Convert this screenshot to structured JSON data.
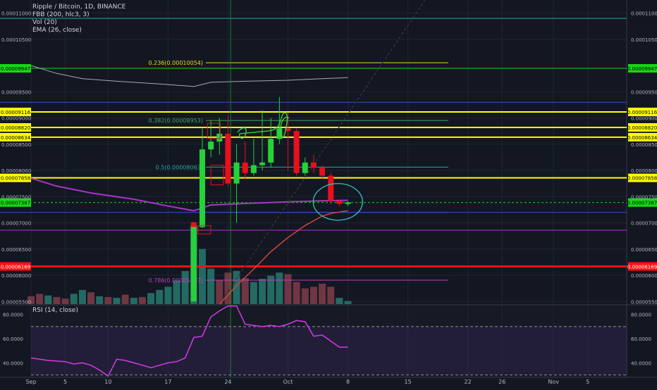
{
  "header": {
    "title": "Ripple / Bitcoin, 1D, BINANCE",
    "indicators": [
      "FBB (200, hlc3, 3)",
      "Vol (20)",
      "EMA (26, close)"
    ]
  },
  "rsi_header": "RSI (14, close)",
  "colors": {
    "background": "#131722",
    "up": "#26d13a",
    "down": "#e8101a",
    "volume_up": "#26736a",
    "volume_down": "#7a3a48",
    "fib": "#dede2a",
    "fib_green": "#3ea85a",
    "fib_teal": "#2aa5a5",
    "fib_purple": "#c03ec0",
    "ema": "#d0473a",
    "fbb_mid": "#a835c9",
    "fbb_upper": "#a7a9ad",
    "rsi": "#d43ae6",
    "tag_yellow": "#ffff00",
    "tag_green": "#16d916",
    "tag_red": "#ff1111"
  },
  "chart_data": [
    {
      "type": "candlestick",
      "title": "Ripple / Bitcoin, 1D, BINANCE",
      "ylim": [
        5.45e-05,
        0.0001125
      ],
      "x_ticks": [
        {
          "label": "Sep",
          "day": 0
        },
        {
          "label": "5",
          "day": 4
        },
        {
          "label": "10",
          "day": 9
        },
        {
          "label": "17",
          "day": 16
        },
        {
          "label": "24",
          "day": 23
        },
        {
          "label": "Oct",
          "day": 30
        },
        {
          "label": "8",
          "day": 37
        },
        {
          "label": "15",
          "day": 44
        },
        {
          "label": "22",
          "day": 51
        },
        {
          "label": "26",
          "day": 55
        },
        {
          "label": "Nov",
          "day": 61
        },
        {
          "label": "5",
          "day": 65
        }
      ],
      "y_ticks": [
        "0.00011000",
        "0.00010500",
        "0.00009500",
        "0.00009000",
        "0.00008500",
        "0.00008000",
        "0.00007500",
        "0.00007000",
        "0.00006500",
        "0.00006000",
        "0.00005500"
      ],
      "y_tick_values": [
        0.00011,
        0.000105,
        9.5e-05,
        9e-05,
        8.5e-05,
        8e-05,
        7.5e-05,
        7e-05,
        6.5e-05,
        6e-05,
        5.5e-05
      ],
      "candles": [
        {
          "day": 19,
          "o": 7.01e-05,
          "h": 7.02e-05,
          "l": 5.5e-05,
          "c": 5.5e-05
        },
        {
          "day": 19,
          "o": 5.5e-05,
          "h": 6.93e-05,
          "l": 5.5e-05,
          "c": 6.92e-05
        },
        {
          "day": 20,
          "o": 6.92e-05,
          "h": 8.8e-05,
          "l": 6.9e-05,
          "c": 8.4e-05
        },
        {
          "day": 21,
          "o": 8.4e-05,
          "h": 8.95e-05,
          "l": 8.25e-05,
          "c": 8.55e-05
        },
        {
          "day": 22,
          "o": 8.55e-05,
          "h": 9e-05,
          "l": 8.3e-05,
          "c": 8.7e-05
        },
        {
          "day": 23,
          "o": 8.7e-05,
          "h": 9.05e-05,
          "l": 7.7e-05,
          "c": 7.75e-05
        },
        {
          "day": 24,
          "o": 7.75e-05,
          "h": 8.5e-05,
          "l": 7e-05,
          "c": 8.15e-05
        },
        {
          "day": 25,
          "o": 8.15e-05,
          "h": 8.55e-05,
          "l": 7.85e-05,
          "c": 7.95e-05
        },
        {
          "day": 26,
          "o": 7.95e-05,
          "h": 8.6e-05,
          "l": 7.9e-05,
          "c": 8.1e-05
        },
        {
          "day": 27,
          "o": 8.1e-05,
          "h": 9.15e-05,
          "l": 8e-05,
          "c": 8.15e-05
        },
        {
          "day": 28,
          "o": 8.15e-05,
          "h": 9e-05,
          "l": 8.05e-05,
          "c": 8.6e-05
        },
        {
          "day": 29,
          "o": 8.6e-05,
          "h": 9.4e-05,
          "l": 8.5e-05,
          "c": 8.8e-05
        },
        {
          "day": 30,
          "o": 8.8e-05,
          "h": 9.1e-05,
          "l": 8e-05,
          "c": 8.75e-05
        },
        {
          "day": 31,
          "o": 8.75e-05,
          "h": 8.8e-05,
          "l": 7.9e-05,
          "c": 7.95e-05
        },
        {
          "day": 32,
          "o": 7.95e-05,
          "h": 8.25e-05,
          "l": 7.9e-05,
          "c": 8.15e-05
        },
        {
          "day": 33,
          "o": 8.15e-05,
          "h": 8.3e-05,
          "l": 7.95e-05,
          "c": 8.05e-05
        },
        {
          "day": 34,
          "o": 8.05e-05,
          "h": 8.1e-05,
          "l": 7.85e-05,
          "c": 7.9e-05
        },
        {
          "day": 35,
          "o": 7.9e-05,
          "h": 7.95e-05,
          "l": 7.35e-05,
          "c": 7.42e-05
        },
        {
          "day": 36,
          "o": 7.42e-05,
          "h": 7.45e-05,
          "l": 7.32e-05,
          "c": 7.36e-05
        },
        {
          "day": 37,
          "o": 7.36e-05,
          "h": 7.41e-05,
          "l": 7.32e-05,
          "c": 7.39e-05
        }
      ],
      "horizontal_levels": [
        {
          "value": 0.000109,
          "color": "#2aa5a5",
          "style": "solid",
          "tag": ""
        },
        {
          "value": 9.947e-05,
          "color": "#16d916",
          "style": "solid",
          "tag": "0.00009947"
        },
        {
          "value": 9.3e-05,
          "color": "#3450c8",
          "style": "solid",
          "tag": ""
        },
        {
          "value": 9.116e-05,
          "color": "#ffff00",
          "style": "solid",
          "tag": "0.00009116"
        },
        {
          "value": 8.82e-05,
          "color": "#ffff00",
          "style": "solid",
          "tag": "0.00008820"
        },
        {
          "value": 8.634e-05,
          "color": "#ffff00",
          "style": "solid",
          "tag": "0.00008634"
        },
        {
          "value": 7.858e-05,
          "color": "#ffff00",
          "style": "solid",
          "tag": "0.00007858"
        },
        {
          "value": 7.387e-05,
          "color": "#16d916",
          "style": "dashed",
          "tag": "0.00007387"
        },
        {
          "value": 7.2e-05,
          "color": "#3450c8",
          "style": "solid",
          "tag": ""
        },
        {
          "value": 6.86e-05,
          "color": "#a835c9",
          "style": "solid",
          "tag": ""
        },
        {
          "value": 6.169e-05,
          "color": "#ff1111",
          "style": "thick",
          "tag": "0.00006169"
        }
      ],
      "fib_levels": [
        {
          "label": "0.236(0.00010054)",
          "value": 0.00010054,
          "color": "#dede2a"
        },
        {
          "label": "0.382(0.00008953)",
          "value": 8.953e-05,
          "color": "#3ea85a"
        },
        {
          "label": "0.5(0.00008063)",
          "value": 8.063e-05,
          "color": "#2aa5a5"
        },
        {
          "label": "0.786(0.00005907)",
          "value": 5.907e-05,
          "color": "#c03ec0"
        }
      ],
      "fbb_upper": [
        {
          "day": 0,
          "v": 0.0001
        },
        {
          "day": 3,
          "v": 9.85e-05
        },
        {
          "day": 6,
          "v": 9.75e-05
        },
        {
          "day": 10,
          "v": 9.7e-05
        },
        {
          "day": 15,
          "v": 9.65e-05
        },
        {
          "day": 19,
          "v": 9.6e-05
        },
        {
          "day": 21,
          "v": 9.68e-05
        },
        {
          "day": 25,
          "v": 9.7e-05
        },
        {
          "day": 30,
          "v": 9.72e-05
        },
        {
          "day": 34,
          "v": 9.75e-05
        },
        {
          "day": 37,
          "v": 9.77e-05
        }
      ],
      "fbb_mid": [
        {
          "day": 0,
          "v": 7.85e-05
        },
        {
          "day": 3,
          "v": 7.7e-05
        },
        {
          "day": 7,
          "v": 7.57e-05
        },
        {
          "day": 12,
          "v": 7.45e-05
        },
        {
          "day": 16,
          "v": 7.32e-05
        },
        {
          "day": 19,
          "v": 7.23e-05
        },
        {
          "day": 21,
          "v": 7.34e-05
        },
        {
          "day": 25,
          "v": 7.37e-05
        },
        {
          "day": 30,
          "v": 7.4e-05
        },
        {
          "day": 34,
          "v": 7.42e-05
        },
        {
          "day": 37,
          "v": 7.43e-05
        }
      ],
      "ema": [
        {
          "day": 22,
          "v": 5.45e-05
        },
        {
          "day": 24,
          "v": 5.8e-05
        },
        {
          "day": 26,
          "v": 6.12e-05
        },
        {
          "day": 28,
          "v": 6.45e-05
        },
        {
          "day": 30,
          "v": 6.72e-05
        },
        {
          "day": 32,
          "v": 6.95e-05
        },
        {
          "day": 34,
          "v": 7.13e-05
        },
        {
          "day": 35,
          "v": 7.18e-05
        },
        {
          "day": 37,
          "v": 7.23e-05
        }
      ],
      "volume": [
        {
          "day": 0,
          "v": 0.1,
          "up": false
        },
        {
          "day": 1,
          "v": 0.13,
          "up": false
        },
        {
          "day": 2,
          "v": 0.11,
          "up": true
        },
        {
          "day": 3,
          "v": 0.09,
          "up": false
        },
        {
          "day": 4,
          "v": 0.07,
          "up": false
        },
        {
          "day": 5,
          "v": 0.13,
          "up": true
        },
        {
          "day": 6,
          "v": 0.18,
          "up": true
        },
        {
          "day": 7,
          "v": 0.15,
          "up": false
        },
        {
          "day": 8,
          "v": 0.1,
          "up": true
        },
        {
          "day": 9,
          "v": 0.09,
          "up": false
        },
        {
          "day": 10,
          "v": 0.08,
          "up": true
        },
        {
          "day": 11,
          "v": 0.12,
          "up": false
        },
        {
          "day": 12,
          "v": 0.08,
          "up": true
        },
        {
          "day": 13,
          "v": 0.09,
          "up": false
        },
        {
          "day": 14,
          "v": 0.14,
          "up": true
        },
        {
          "day": 15,
          "v": 0.18,
          "up": true
        },
        {
          "day": 16,
          "v": 0.22,
          "up": true
        },
        {
          "day": 17,
          "v": 0.3,
          "up": true
        },
        {
          "day": 18,
          "v": 0.42,
          "up": true
        },
        {
          "day": 19,
          "v": 1.0,
          "up": true
        },
        {
          "day": 20,
          "v": 0.7,
          "up": true
        },
        {
          "day": 21,
          "v": 0.45,
          "up": true
        },
        {
          "day": 22,
          "v": 0.3,
          "up": false
        },
        {
          "day": 23,
          "v": 0.4,
          "up": false
        },
        {
          "day": 24,
          "v": 0.42,
          "up": true
        },
        {
          "day": 25,
          "v": 0.33,
          "up": false
        },
        {
          "day": 26,
          "v": 0.28,
          "up": true
        },
        {
          "day": 27,
          "v": 0.32,
          "up": true
        },
        {
          "day": 28,
          "v": 0.36,
          "up": true
        },
        {
          "day": 29,
          "v": 0.4,
          "up": true
        },
        {
          "day": 30,
          "v": 0.38,
          "up": false
        },
        {
          "day": 31,
          "v": 0.28,
          "up": false
        },
        {
          "day": 32,
          "v": 0.2,
          "up": false
        },
        {
          "day": 33,
          "v": 0.22,
          "up": false
        },
        {
          "day": 34,
          "v": 0.26,
          "up": false
        },
        {
          "day": 35,
          "v": 0.22,
          "up": false
        },
        {
          "day": 36,
          "v": 0.08,
          "up": true
        },
        {
          "day": 37,
          "v": 0.04,
          "up": true
        }
      ]
    },
    {
      "type": "line",
      "title": "RSI (14, close)",
      "ylim": [
        28,
        88
      ],
      "y_ticks": [
        "80.0000",
        "60.0000",
        "40.0000"
      ],
      "y_tick_values": [
        80,
        60,
        40
      ],
      "band": [
        30,
        70
      ],
      "series": [
        {
          "name": "RSI (14, close)",
          "points": [
            {
              "day": 0,
              "v": 44
            },
            {
              "day": 2,
              "v": 42
            },
            {
              "day": 4,
              "v": 41
            },
            {
              "day": 5,
              "v": 39
            },
            {
              "day": 6,
              "v": 40
            },
            {
              "day": 7,
              "v": 38
            },
            {
              "day": 8,
              "v": 34
            },
            {
              "day": 9,
              "v": 29
            },
            {
              "day": 10,
              "v": 43
            },
            {
              "day": 11,
              "v": 42
            },
            {
              "day": 12,
              "v": 40
            },
            {
              "day": 13,
              "v": 38
            },
            {
              "day": 14,
              "v": 36
            },
            {
              "day": 15,
              "v": 38
            },
            {
              "day": 16,
              "v": 40
            },
            {
              "day": 17,
              "v": 41
            },
            {
              "day": 18,
              "v": 44
            },
            {
              "day": 19,
              "v": 61
            },
            {
              "day": 20,
              "v": 62
            },
            {
              "day": 21,
              "v": 78
            },
            {
              "day": 22,
              "v": 83
            },
            {
              "day": 23,
              "v": 87
            },
            {
              "day": 24,
              "v": 87
            },
            {
              "day": 25,
              "v": 72
            },
            {
              "day": 26,
              "v": 71
            },
            {
              "day": 27,
              "v": 70
            },
            {
              "day": 28,
              "v": 71
            },
            {
              "day": 29,
              "v": 70
            },
            {
              "day": 30,
              "v": 72
            },
            {
              "day": 31,
              "v": 75
            },
            {
              "day": 32,
              "v": 74
            },
            {
              "day": 33,
              "v": 62
            },
            {
              "day": 34,
              "v": 63
            },
            {
              "day": 35,
              "v": 58
            },
            {
              "day": 36,
              "v": 53
            },
            {
              "day": 37,
              "v": 53
            }
          ]
        }
      ],
      "x_ticks": []
    }
  ]
}
